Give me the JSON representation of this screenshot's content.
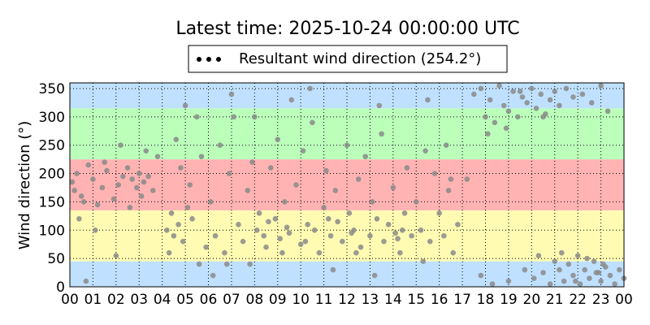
{
  "chart_data": {
    "type": "scatter",
    "title": "Latest time: 2025-10-24 00:00:00 UTC",
    "ylabel": "Wind direction (°)",
    "xlim": [
      0,
      24
    ],
    "ylim": [
      0,
      360
    ],
    "xticks": [
      {
        "value": 0,
        "label": "00"
      },
      {
        "value": 1,
        "label": "01"
      },
      {
        "value": 2,
        "label": "02"
      },
      {
        "value": 3,
        "label": "03"
      },
      {
        "value": 4,
        "label": "04"
      },
      {
        "value": 5,
        "label": "05"
      },
      {
        "value": 6,
        "label": "06"
      },
      {
        "value": 7,
        "label": "07"
      },
      {
        "value": 8,
        "label": "08"
      },
      {
        "value": 9,
        "label": "09"
      },
      {
        "value": 10,
        "label": "10"
      },
      {
        "value": 11,
        "label": "11"
      },
      {
        "value": 12,
        "label": "12"
      },
      {
        "value": 13,
        "label": "13"
      },
      {
        "value": 14,
        "label": "14"
      },
      {
        "value": 15,
        "label": "15"
      },
      {
        "value": 16,
        "label": "16"
      },
      {
        "value": 17,
        "label": "17"
      },
      {
        "value": 18,
        "label": "18"
      },
      {
        "value": 19,
        "label": "19"
      },
      {
        "value": 20,
        "label": "20"
      },
      {
        "value": 21,
        "label": "21"
      },
      {
        "value": 22,
        "label": "22"
      },
      {
        "value": 23,
        "label": "23"
      },
      {
        "value": 24,
        "label": "00"
      }
    ],
    "yticks": [
      0,
      50,
      100,
      150,
      200,
      250,
      300,
      350
    ],
    "grid": true,
    "bands": [
      {
        "from": 0,
        "to": 45,
        "color": "#bfe1ff"
      },
      {
        "from": 45,
        "to": 135,
        "color": "#fffbb3"
      },
      {
        "from": 135,
        "to": 225,
        "color": "#ffb3b3"
      },
      {
        "from": 225,
        "to": 315,
        "color": "#bbffbb"
      },
      {
        "from": 315,
        "to": 360,
        "color": "#bfe1ff"
      }
    ],
    "series": [
      {
        "name": "Resultant wind direction (254.2°)",
        "color": "#000000",
        "point_color": "#8a8a8a",
        "x": [
          0.1,
          0.2,
          0.3,
          0.5,
          0.6,
          0.8,
          1.0,
          1.2,
          1.4,
          1.6,
          1.9,
          2.1,
          2.3,
          2.5,
          2.7,
          2.9,
          3.0,
          3.2,
          3.4,
          3.6,
          3.8,
          0.4,
          1.1,
          2.0,
          2.6,
          3.3,
          0.7,
          1.5,
          2.2,
          3.1,
          4.2,
          4.4,
          4.5,
          4.7,
          4.9,
          5.1,
          5.3,
          5.5,
          5.7,
          5.9,
          4.3,
          4.8,
          5.2,
          5.6,
          4.6,
          5.0,
          6.1,
          6.3,
          6.5,
          6.7,
          6.9,
          7.1,
          7.3,
          7.5,
          7.7,
          7.9,
          8.1,
          8.2,
          8.4,
          8.5,
          8.7,
          8.9,
          9.0,
          9.1,
          9.3,
          9.5,
          9.6,
          9.8,
          10.0,
          10.1,
          10.3,
          10.5,
          10.6,
          10.8,
          11.0,
          11.1,
          11.3,
          11.5,
          11.6,
          11.8,
          12.0,
          12.1,
          12.3,
          12.5,
          12.6,
          12.8,
          13.0,
          13.1,
          13.3,
          13.5,
          13.6,
          13.8,
          14.0,
          14.1,
          14.3,
          14.5,
          14.6,
          14.8,
          15.0,
          15.2,
          15.4,
          15.6,
          15.8,
          16.0,
          16.2,
          16.4,
          16.6,
          16.8,
          6.2,
          7.0,
          7.8,
          8.6,
          9.4,
          10.2,
          11.2,
          12.2,
          13.2,
          14.2,
          15.3,
          16.3,
          6.8,
          8.0,
          9.2,
          10.4,
          11.4,
          12.4,
          13.4,
          14.4,
          15.5,
          16.5,
          17.2,
          17.5,
          17.8,
          18.0,
          18.2,
          18.4,
          18.6,
          18.8,
          19.0,
          19.2,
          19.4,
          19.6,
          19.8,
          20.0,
          20.2,
          20.4,
          20.6,
          20.8,
          21.0,
          21.2,
          21.5,
          21.8,
          22.2,
          22.6,
          23.0,
          23.3,
          18.1,
          18.9,
          19.5,
          20.5,
          17.8,
          18.3,
          19.0,
          19.7,
          20.1,
          20.5,
          20.8,
          21.0,
          21.2,
          21.4,
          21.6,
          21.8,
          22.0,
          22.1,
          22.3,
          22.5,
          22.7,
          22.9,
          23.0,
          23.2,
          23.4,
          23.6,
          23.8,
          24.0,
          21.3,
          22.4,
          23.1,
          20.3,
          21.9,
          22.8
        ],
        "values": [
          185,
          170,
          200,
          160,
          150,
          215,
          190,
          145,
          175,
          205,
          155,
          180,
          195,
          210,
          190,
          175,
          200,
          185,
          195,
          170,
          230,
          120,
          100,
          55,
          140,
          240,
          10,
          220,
          250,
          160,
          100,
          130,
          90,
          110,
          80,
          140,
          120,
          300,
          230,
          70,
          60,
          210,
          180,
          40,
          260,
          320,
          150,
          90,
          250,
          60,
          200,
          300,
          110,
          80,
          170,
          220,
          100,
          130,
          90,
          70,
          210,
          120,
          260,
          85,
          150,
          95,
          330,
          180,
          75,
          240,
          110,
          290,
          100,
          60,
          140,
          205,
          90,
          170,
          115,
          80,
          250,
          130,
          100,
          190,
          70,
          230,
          90,
          150,
          120,
          270,
          80,
          110,
          175,
          95,
          60,
          130,
          210,
          90,
          150,
          100,
          240,
          80,
          200,
          130,
          90,
          170,
          60,
          110,
          20,
          340,
          40,
          115,
          105,
          80,
          120,
          95,
          20,
          85,
          45,
          250,
          40,
          300,
          60,
          350,
          30,
          60,
          320,
          100,
          330,
          190,
          190,
          340,
          350,
          300,
          330,
          290,
          355,
          320,
          310,
          345,
          300,
          335,
          325,
          350,
          315,
          340,
          305,
          330,
          345,
          320,
          350,
          335,
          340,
          325,
          355,
          310,
          270,
          280,
          345,
          300,
          20,
          5,
          10,
          30,
          15,
          25,
          5,
          45,
          30,
          10,
          40,
          20,
          55,
          5,
          30,
          15,
          45,
          25,
          10,
          35,
          20,
          5,
          30,
          15,
          60,
          50,
          40,
          55,
          10,
          25
        ]
      }
    ]
  }
}
